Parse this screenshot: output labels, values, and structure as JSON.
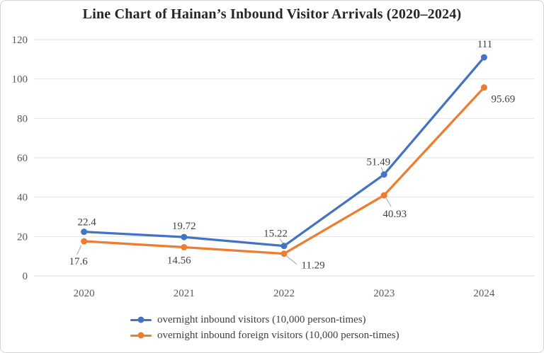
{
  "colors": {
    "blue_series": "#4472C4",
    "orange_series": "#ED7D31",
    "grid_line": "#E2E2E2",
    "zero_axis_line": "#D9D9D9",
    "axis_label_text": "#595959",
    "data_label_text": "#404040",
    "leader_line": "#A6A6A6",
    "title_text": "#262626",
    "frame_border": "#D4D4D4",
    "background": "#FFFFFF"
  },
  "chart_data": {
    "type": "line",
    "title": "Line Chart of Hainan’s Inbound Visitor Arrivals (2020–2024)",
    "categories": [
      "2020",
      "2021",
      "2022",
      "2023",
      "2024"
    ],
    "series": [
      {
        "name": "overnight inbound visitors (10,000 person-times)",
        "color_key": "blue_series",
        "values": [
          22.4,
          19.72,
          15.22,
          51.49,
          111
        ],
        "labels": [
          "22.4",
          "19.72",
          "15.22",
          "51.49",
          "111"
        ]
      },
      {
        "name": "overnight inbound foreign visitors (10,000 person-times)",
        "color_key": "orange_series",
        "values": [
          17.6,
          14.56,
          11.29,
          40.93,
          95.69
        ],
        "labels": [
          "17.6",
          "14.56",
          "11.29",
          "40.93",
          "95.69"
        ]
      }
    ],
    "y_ticks": [
      0,
      20,
      40,
      60,
      80,
      100,
      120
    ],
    "ylim": [
      0,
      120
    ],
    "xlabel": "",
    "ylabel": "",
    "grid": true,
    "legend_position": "bottom"
  }
}
